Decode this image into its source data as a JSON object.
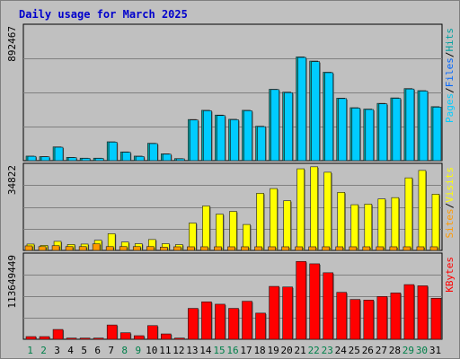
{
  "chart_data": {
    "type": "bar",
    "title": "Daily usage for March 2025",
    "x": [
      "1",
      "2",
      "3",
      "4",
      "5",
      "6",
      "7",
      "8",
      "9",
      "10",
      "11",
      "12",
      "13",
      "14",
      "15",
      "16",
      "17",
      "18",
      "19",
      "20",
      "21",
      "22",
      "23",
      "24",
      "25",
      "26",
      "27",
      "28",
      "29",
      "30",
      "31"
    ],
    "weekend_days": [
      "1",
      "2",
      "8",
      "9",
      "15",
      "16",
      "22",
      "23",
      "29",
      "30"
    ],
    "grid": true,
    "panels": [
      {
        "id": "top",
        "ytick": "892467",
        "ymax": 1200000,
        "legend": [
          {
            "text": "Pages",
            "color": "#00ccff"
          },
          {
            "text": "/",
            "color": "#000000"
          },
          {
            "text": "Files",
            "color": "#0066ff"
          },
          {
            "text": "/",
            "color": "#000000"
          },
          {
            "text": "Hits",
            "color": "#00a0a0"
          }
        ],
        "series": [
          {
            "name": "Hits",
            "color": "#00a0a0",
            "values": [
              40000,
              36000,
              121000,
              29000,
              22000,
              22000,
              166000,
              77000,
              40000,
              153000,
              60000,
              18000,
              362000,
              443000,
              401000,
              364000,
              443000,
              303000,
              628000,
              603000,
              913000,
              876000,
              778000,
              550000,
              466000,
              454000,
              504000,
              552000,
              634000,
              616000,
              475000
            ]
          },
          {
            "name": "Files",
            "color": "#0066ff",
            "values": [
              0,
              0,
              0,
              0,
              0,
              0,
              0,
              0,
              0,
              0,
              0,
              0,
              0,
              0,
              0,
              0,
              0,
              0,
              0,
              0,
              0,
              0,
              0,
              0,
              0,
              0,
              0,
              0,
              0,
              0,
              0
            ]
          },
          {
            "name": "Pages",
            "color": "#00ccff",
            "values": [
              38000,
              34000,
              118000,
              27000,
              20000,
              20000,
              163000,
              74000,
              37000,
              150000,
              57000,
              16000,
              358000,
              439000,
              397000,
              360000,
              439000,
              299000,
              625000,
              598000,
              908000,
              871000,
              774000,
              546000,
              462000,
              450000,
              500000,
              548000,
              630000,
              612000,
              470000
            ]
          }
        ]
      },
      {
        "id": "middle",
        "ytick": "34822",
        "ymax": 48000,
        "legend": [
          {
            "text": "Sites",
            "color": "#ff9900"
          },
          {
            "text": "/",
            "color": "#000000"
          },
          {
            "text": "Visits",
            "color": "#ffff00"
          }
        ],
        "series": [
          {
            "name": "Visits",
            "color": "#ffff00",
            "values": [
              3500,
              2800,
              5000,
              3300,
              3500,
              5600,
              9200,
              4600,
              3700,
              6000,
              3700,
              3200,
              15100,
              24500,
              20000,
              21500,
              14300,
              31500,
              34100,
              27400,
              45000,
              46100,
              43100,
              32000,
              25200,
              25500,
              28400,
              29100,
              40000,
              44100,
              31000
            ]
          },
          {
            "name": "Sites",
            "color": "#ff9900",
            "values": [
              2500,
              2100,
              2600,
              2100,
              2100,
              3600,
              2100,
              2100,
              2100,
              2100,
              1800,
              2000,
              2000,
              2000,
              2000,
              2000,
              2000,
              2000,
              2000,
              2000,
              2000,
              2000,
              2000,
              2000,
              2000,
              2000,
              2000,
              2000,
              2000,
              2000,
              2000
            ]
          }
        ]
      },
      {
        "id": "bottom",
        "ytick": "113649449",
        "ymax": 145000000,
        "legend": [
          {
            "text": "KBytes",
            "color": "#ff0000"
          }
        ],
        "series": [
          {
            "name": "KBytes",
            "color": "#ff0000",
            "values": [
              4500000,
              4500000,
              16500000,
              2000000,
              2000000,
              2000000,
              24000000,
              11000000,
              6000000,
              23000000,
              9000000,
              2000000,
              52000000,
              63000000,
              59000000,
              52000000,
              64000000,
              44000000,
              89000000,
              88000000,
              131000000,
              127000000,
              112000000,
              79000000,
              67000000,
              66000000,
              72000000,
              78000000,
              92000000,
              90000000,
              69000000
            ]
          }
        ]
      }
    ]
  }
}
